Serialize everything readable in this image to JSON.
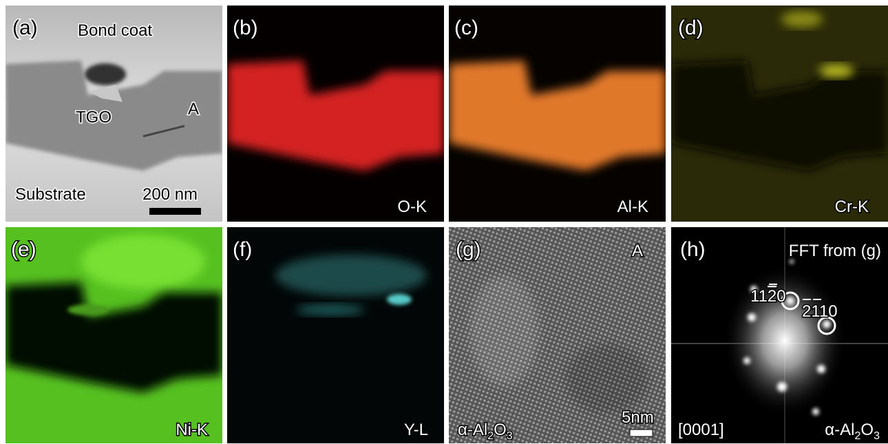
{
  "panels": {
    "a": {
      "label": "(a)",
      "bond_coat": "Bond coat",
      "tgo": "TGO",
      "site": "A",
      "substrate": "Substrate",
      "scale_bar": "200 nm"
    },
    "b": {
      "label": "(b)",
      "element": "O-K"
    },
    "c": {
      "label": "(c)",
      "element": "Al-K"
    },
    "d": {
      "label": "(d)",
      "element": "Cr-K"
    },
    "e": {
      "label": "(e)",
      "element": "Ni-K"
    },
    "f": {
      "label": "(f)",
      "element": "Y-L"
    },
    "g": {
      "label": "(g)",
      "site": "A",
      "phase": [
        "α-Al",
        "2",
        "O",
        "3"
      ],
      "scale_bar": "5nm"
    },
    "h": {
      "label": "(h)",
      "title": "FFT from (g)",
      "spot_1": [
        "11",
        "2",
        "0"
      ],
      "spot_2": [
        "2",
        "1",
        "10"
      ],
      "zone_axis": "[0001]",
      "phase": [
        "α-Al",
        "2",
        "O",
        "3"
      ]
    }
  }
}
